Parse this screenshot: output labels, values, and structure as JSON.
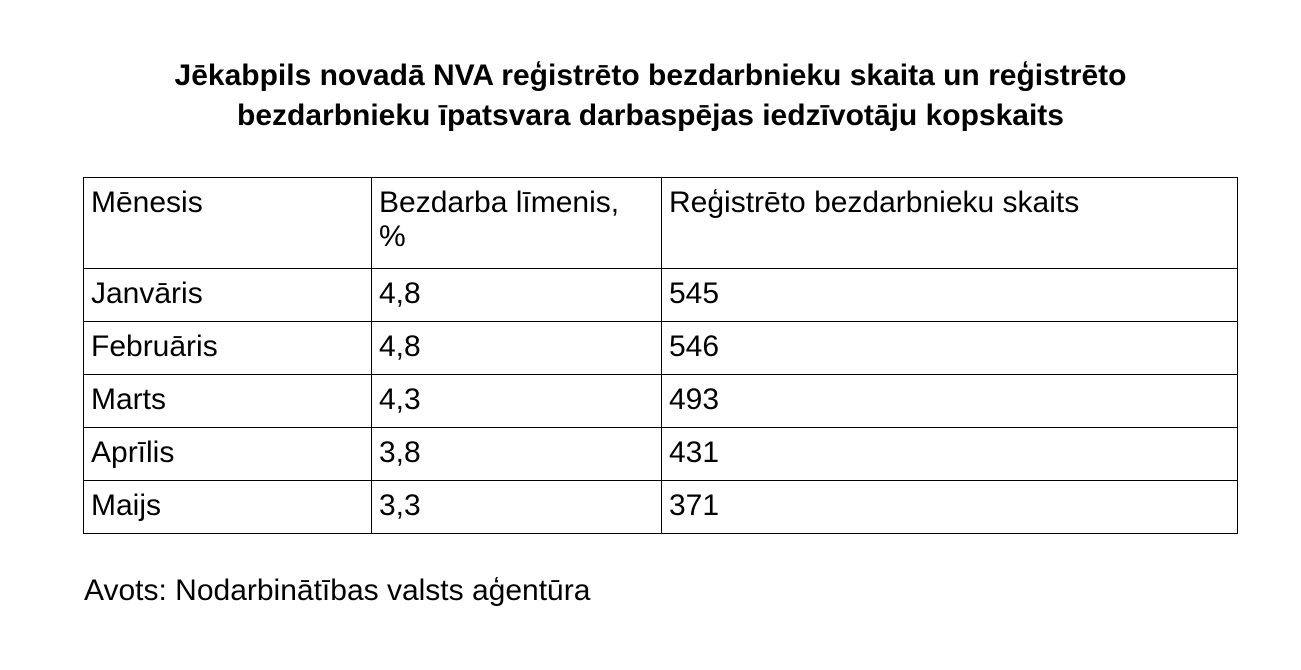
{
  "title_line1": "Jēkabpils novadā NVA reģistrēto bezdarbnieku skaita un reģistrēto",
  "title_line2": "bezdarbnieku īpatsvara darbaspējas iedzīvotāju kopskaits",
  "table": {
    "headers": [
      "Mēnesis",
      "Bezdarba līmenis, %",
      "Reģistrēto bezdarbnieku skaits"
    ],
    "rows": [
      [
        "Janvāris",
        "4,8",
        "545"
      ],
      [
        "Februāris",
        "4,8",
        "546"
      ],
      [
        "Marts",
        "4,3",
        "493"
      ],
      [
        "Aprīlis",
        "3,8",
        "431"
      ],
      [
        "Maijs",
        "3,3",
        "371"
      ]
    ]
  },
  "source": "Avots: Nodarbinātības valsts aģentūra"
}
